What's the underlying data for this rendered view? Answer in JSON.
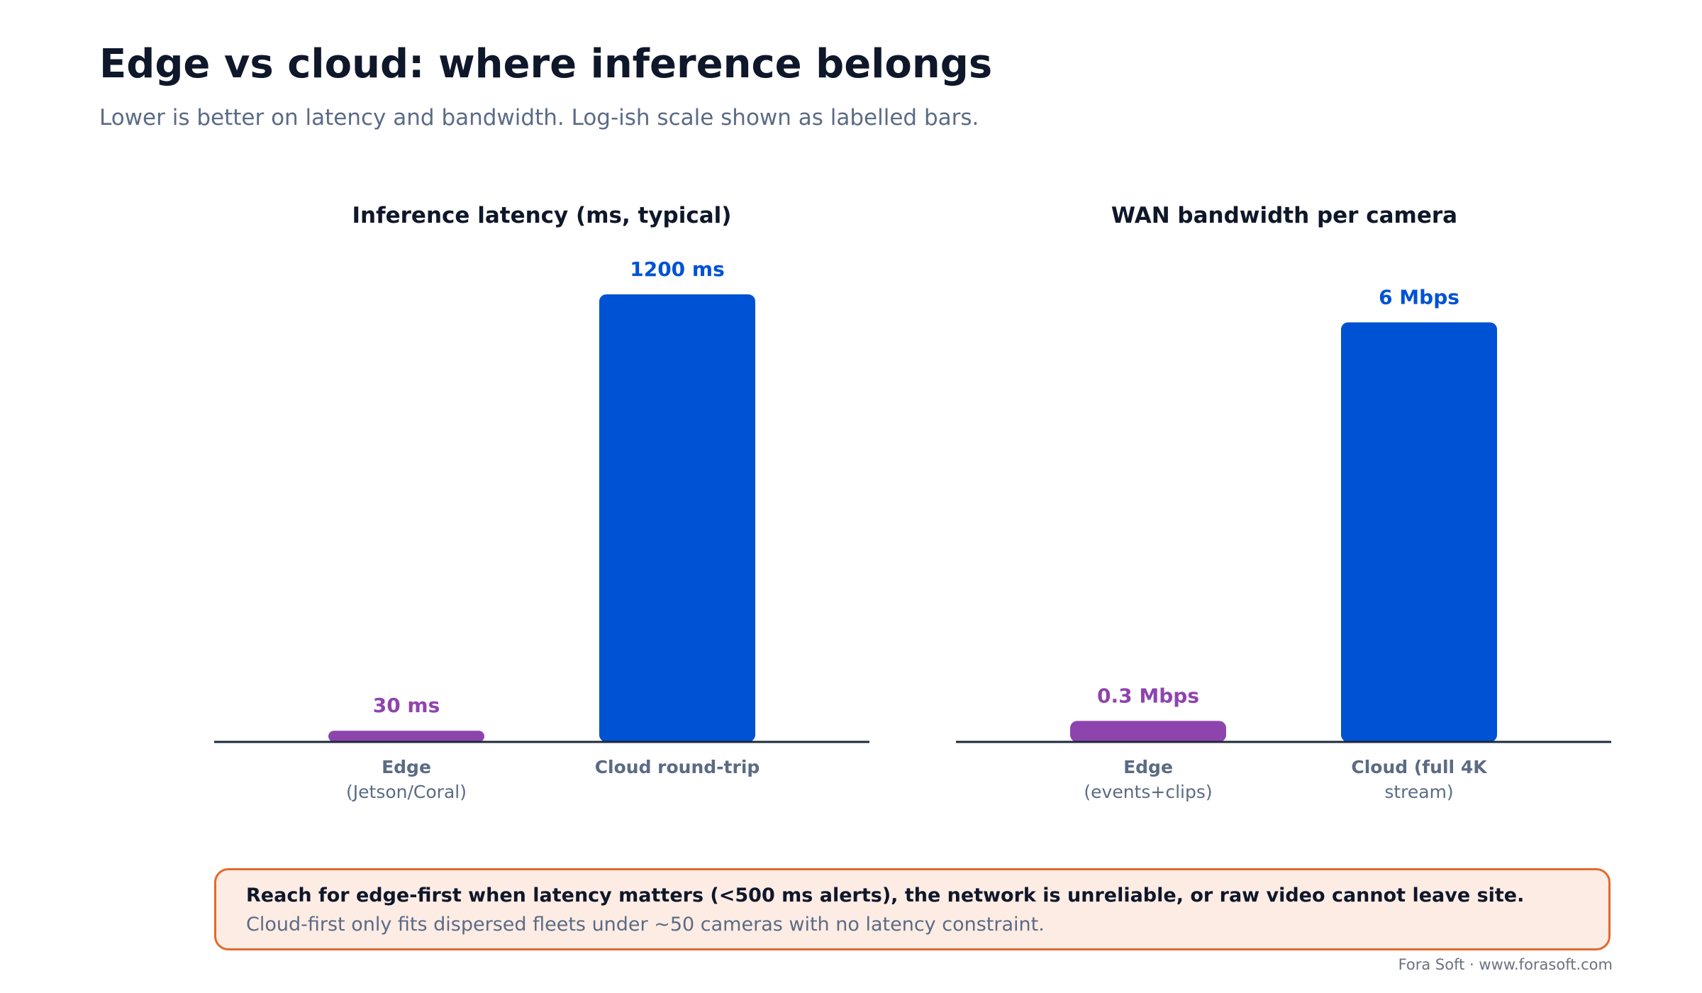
{
  "title": "Edge vs cloud: where inference belongs",
  "subtitle": "Lower is better on latency and bandwidth. Log-ish scale shown as labelled bars.",
  "chart_data": [
    {
      "type": "bar",
      "title": "Inference latency (ms, typical)",
      "categories": [
        {
          "name": "Edge",
          "detail": "(Jetson/Coral)"
        },
        {
          "name": "Cloud round-trip",
          "detail": ""
        }
      ],
      "values": [
        30,
        1200
      ],
      "value_labels": [
        "30 ms",
        "1200 ms"
      ],
      "colors": [
        "#8e44ad",
        "#0052d4"
      ],
      "ylim": [
        0,
        1200
      ],
      "grid": false,
      "xlabel": "",
      "ylabel": ""
    },
    {
      "type": "bar",
      "title": "WAN bandwidth per camera",
      "categories": [
        {
          "name": "Edge",
          "detail": "(events+clips)"
        },
        {
          "name": "Cloud (full 4K",
          "detail": "stream)"
        }
      ],
      "values": [
        0.3,
        6
      ],
      "value_labels": [
        "0.3 Mbps",
        "6 Mbps"
      ],
      "colors": [
        "#8e44ad",
        "#0052d4"
      ],
      "ylim": [
        0,
        6.4
      ],
      "grid": false,
      "xlabel": "",
      "ylabel": ""
    }
  ],
  "callout": {
    "headline": "Reach for edge-first when latency matters (<500 ms alerts), the network is unreliable, or raw video cannot leave site.",
    "body": "Cloud-first only fits dispersed fleets under ~50 cameras with no latency constraint."
  },
  "footer": "Fora Soft · www.forasoft.com",
  "colors": {
    "edge": "#8e44ad",
    "cloud": "#0052d4",
    "axis": "#1e293b",
    "callout_border": "#e26a2c",
    "callout_fill": "#fdece4"
  }
}
